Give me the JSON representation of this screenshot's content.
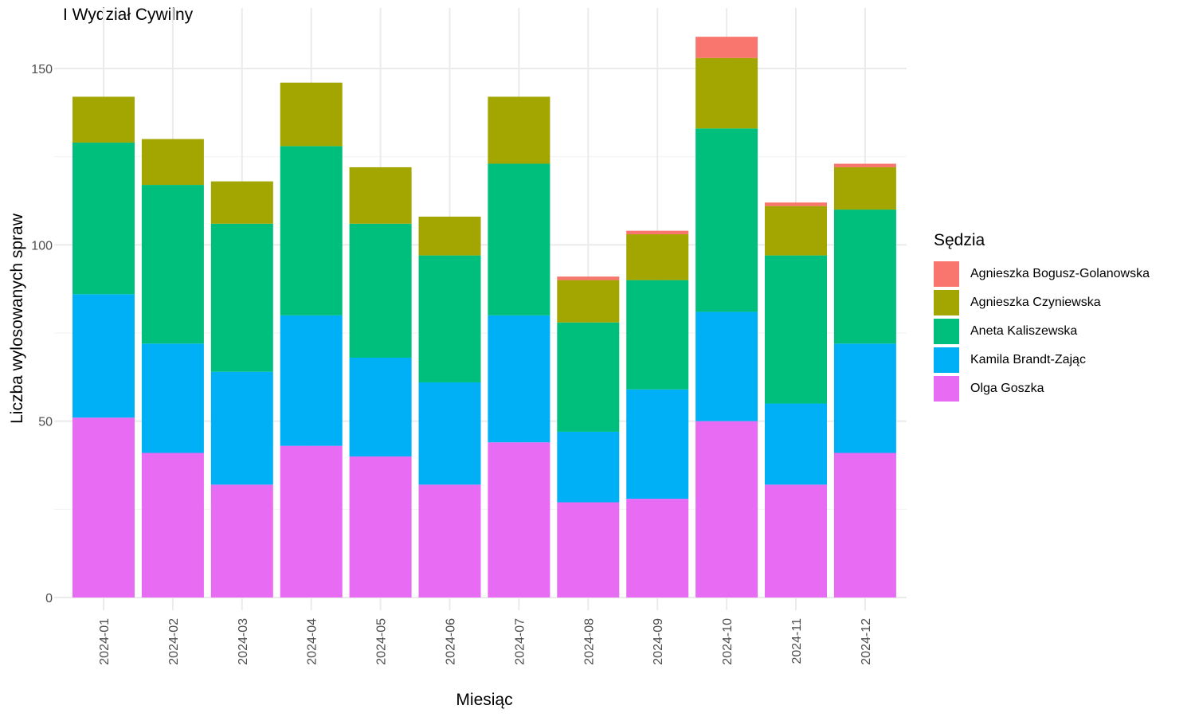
{
  "chart_data": {
    "type": "bar",
    "stacked": true,
    "title": "I Wydział Cywilny",
    "xlabel": "Miesiąc",
    "ylabel": "Liczba wylosowanych spraw",
    "ylim": [
      0,
      160
    ],
    "yticks": [
      0,
      50,
      100,
      150
    ],
    "grid": true,
    "legend_title": "Sędzia",
    "legend_position": "right",
    "categories": [
      "2024-01",
      "2024-02",
      "2024-03",
      "2024-04",
      "2024-05",
      "2024-06",
      "2024-07",
      "2024-08",
      "2024-09",
      "2024-10",
      "2024-11",
      "2024-12"
    ],
    "series": [
      {
        "name": "Olga Goszka",
        "color": "#E76BF3",
        "values": [
          51,
          41,
          32,
          43,
          40,
          32,
          44,
          27,
          28,
          50,
          32,
          41
        ]
      },
      {
        "name": "Kamila Brandt-Zając",
        "color": "#00B0F6",
        "values": [
          35,
          31,
          32,
          37,
          28,
          29,
          36,
          20,
          31,
          31,
          23,
          31
        ]
      },
      {
        "name": "Aneta Kaliszewska",
        "color": "#00BF7D",
        "values": [
          43,
          45,
          42,
          48,
          38,
          36,
          43,
          31,
          31,
          52,
          42,
          38
        ]
      },
      {
        "name": "Agnieszka Czyniewska",
        "color": "#A3A500",
        "values": [
          13,
          13,
          12,
          18,
          16,
          11,
          19,
          12,
          13,
          20,
          14,
          12
        ]
      },
      {
        "name": "Agnieszka Bogusz-Golanowska",
        "color": "#F8766D",
        "values": [
          0,
          0,
          0,
          0,
          0,
          0,
          0,
          1,
          1,
          6,
          1,
          1
        ]
      }
    ],
    "legend_order": [
      "Agnieszka Bogusz-Golanowska",
      "Agnieszka Czyniewska",
      "Aneta Kaliszewska",
      "Kamila Brandt-Zając",
      "Olga Goszka"
    ]
  }
}
